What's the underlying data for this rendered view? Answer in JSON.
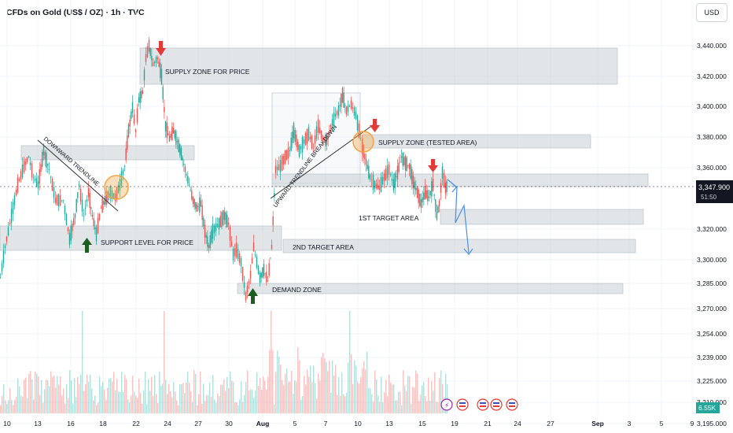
{
  "header": {
    "title": "CFDs on Gold (US$ / OZ) · 1h · TVC",
    "currency_button": "USD"
  },
  "price_badge": {
    "price": "3,347.900",
    "countdown": "51:50"
  },
  "volume_badge": "6.55K",
  "colors": {
    "up": "#26a69a",
    "down": "#ef5350",
    "zone": "#c8d0d6",
    "arrow_red": "#e53935",
    "arrow_green": "#1b5e20",
    "projection": "#4a90e2",
    "circle": "#f4a340",
    "price_badge": "#131722"
  },
  "chart_data": {
    "type": "line",
    "title": "CFDs on Gold (US$ / OZ) · 1h · TVC",
    "y_ticks": [
      "3,440.000",
      "3,420.000",
      "3,400.000",
      "3,380.000",
      "3,360.000",
      "3,320.000",
      "3,300.000",
      "3,285.000",
      "3,270.000",
      "3,254.000",
      "3,239.000",
      "3,225.000",
      "3,210.000",
      "3,195.000"
    ],
    "x_ticks": [
      "10",
      "13",
      "16",
      "18",
      "22",
      "24",
      "27",
      "30",
      "Aug",
      "5",
      "7",
      "10",
      "13",
      "15",
      "19",
      "21",
      "24",
      "27",
      "Sep",
      "3",
      "5",
      "9"
    ],
    "current_price": 3347.9,
    "price_path": [
      [
        0,
        3290
      ],
      [
        6,
        3310
      ],
      [
        14,
        3330
      ],
      [
        22,
        3350
      ],
      [
        30,
        3362
      ],
      [
        36,
        3368
      ],
      [
        42,
        3355
      ],
      [
        48,
        3350
      ],
      [
        55,
        3372
      ],
      [
        62,
        3360
      ],
      [
        70,
        3340
      ],
      [
        80,
        3340
      ],
      [
        88,
        3315
      ],
      [
        95,
        3330
      ],
      [
        100,
        3350
      ],
      [
        106,
        3330
      ],
      [
        112,
        3345
      ],
      [
        117,
        3330
      ],
      [
        122,
        3318
      ],
      [
        128,
        3335
      ],
      [
        133,
        3340
      ],
      [
        140,
        3345
      ],
      [
        146,
        3342
      ],
      [
        152,
        3350
      ],
      [
        158,
        3362
      ],
      [
        163,
        3385
      ],
      [
        168,
        3400
      ],
      [
        172,
        3385
      ],
      [
        176,
        3405
      ],
      [
        181,
        3410
      ],
      [
        185,
        3432
      ],
      [
        189,
        3440
      ],
      [
        194,
        3428
      ],
      [
        200,
        3432
      ],
      [
        205,
        3420
      ],
      [
        210,
        3388
      ],
      [
        215,
        3380
      ],
      [
        220,
        3385
      ],
      [
        225,
        3378
      ],
      [
        230,
        3370
      ],
      [
        235,
        3360
      ],
      [
        240,
        3350
      ],
      [
        245,
        3340
      ],
      [
        250,
        3335
      ],
      [
        255,
        3338
      ],
      [
        260,
        3320
      ],
      [
        265,
        3310
      ],
      [
        270,
        3320
      ],
      [
        278,
        3325
      ],
      [
        285,
        3330
      ],
      [
        290,
        3325
      ],
      [
        296,
        3305
      ],
      [
        300,
        3308
      ],
      [
        306,
        3300
      ],
      [
        312,
        3278
      ],
      [
        318,
        3292
      ],
      [
        322,
        3310
      ],
      [
        326,
        3300
      ],
      [
        330,
        3290
      ],
      [
        335,
        3295
      ],
      [
        340,
        3288
      ],
      [
        345,
        3310
      ],
      [
        350,
        3360
      ],
      [
        356,
        3362
      ],
      [
        362,
        3368
      ],
      [
        368,
        3372
      ],
      [
        373,
        3385
      ],
      [
        380,
        3372
      ],
      [
        386,
        3378
      ],
      [
        392,
        3383
      ],
      [
        398,
        3375
      ],
      [
        404,
        3388
      ],
      [
        410,
        3380
      ],
      [
        415,
        3378
      ],
      [
        420,
        3388
      ],
      [
        426,
        3395
      ],
      [
        430,
        3398
      ],
      [
        435,
        3408
      ],
      [
        440,
        3398
      ],
      [
        446,
        3402
      ],
      [
        452,
        3395
      ],
      [
        456,
        3385
      ],
      [
        460,
        3375
      ],
      [
        465,
        3365
      ],
      [
        470,
        3355
      ],
      [
        476,
        3350
      ],
      [
        482,
        3348
      ],
      [
        488,
        3355
      ],
      [
        494,
        3360
      ],
      [
        500,
        3350
      ],
      [
        505,
        3358
      ],
      [
        510,
        3368
      ],
      [
        515,
        3364
      ],
      [
        520,
        3362
      ],
      [
        525,
        3352
      ],
      [
        530,
        3345
      ],
      [
        535,
        3338
      ],
      [
        540,
        3345
      ],
      [
        545,
        3342
      ],
      [
        550,
        3350
      ],
      [
        555,
        3330
      ],
      [
        558,
        3338
      ],
      [
        562,
        3358
      ],
      [
        566,
        3348
      ],
      [
        569,
        3350
      ]
    ],
    "volumes_hint": "histogram along bottom, heavier in early August"
  },
  "annotations": {
    "supply_zone_price": "SUPPLY ZONE FOR PRICE",
    "supply_zone_tested": "SUPPLY ZONE (TESTED AREA)",
    "first_target": "1ST TARGET AREA",
    "second_target": "2ND TARGET AREA",
    "support_level": "SUPPORT LEVEL FOR PRICE",
    "demand_zone": "DEMAND ZONE",
    "downward_trendline": "DOWNWARD TRENDLINE",
    "upward_trendline": "UPWARD TRENDLINE BREAKDOWN"
  }
}
